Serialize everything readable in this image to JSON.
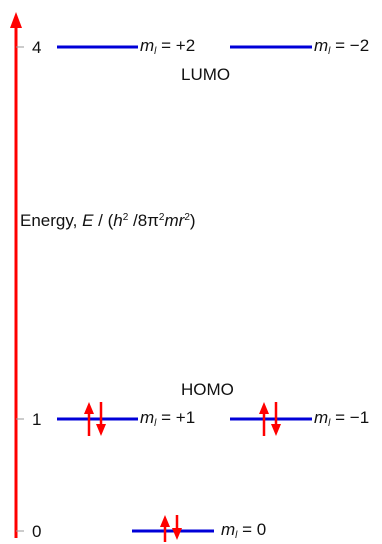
{
  "colors": {
    "axis": "#ff0000",
    "level": "#0000d8",
    "electron": "#ff0000",
    "text": "#111111"
  },
  "axis": {
    "label_prefix": "Energy, ",
    "label_symbol": "E",
    "label_open": " / (",
    "label_h": "h",
    "label_exp1": "2",
    "label_mid": " /8π",
    "label_exp2": "2",
    "label_mr": "mr",
    "label_exp3": "2",
    "label_close": ")",
    "ticks": [
      {
        "value": "4"
      },
      {
        "value": "1"
      },
      {
        "value": "0"
      }
    ]
  },
  "levels": [
    {
      "energy": "4",
      "m_symbol": "m",
      "m_sub": "l",
      "m_text": " = +2",
      "electrons": 0
    },
    {
      "energy": "4",
      "m_symbol": "m",
      "m_sub": "l",
      "m_text": " = −2",
      "electrons": 0
    },
    {
      "energy": "1",
      "m_symbol": "m",
      "m_sub": "l",
      "m_text": " = +1",
      "electrons": 2
    },
    {
      "energy": "1",
      "m_symbol": "m",
      "m_sub": "l",
      "m_text": " = −1",
      "electrons": 2
    },
    {
      "energy": "0",
      "m_symbol": "m",
      "m_sub": "l",
      "m_text": " = 0",
      "electrons": 2
    }
  ],
  "orbital_labels": {
    "lumo": "LUMO",
    "homo": "HOMO"
  }
}
